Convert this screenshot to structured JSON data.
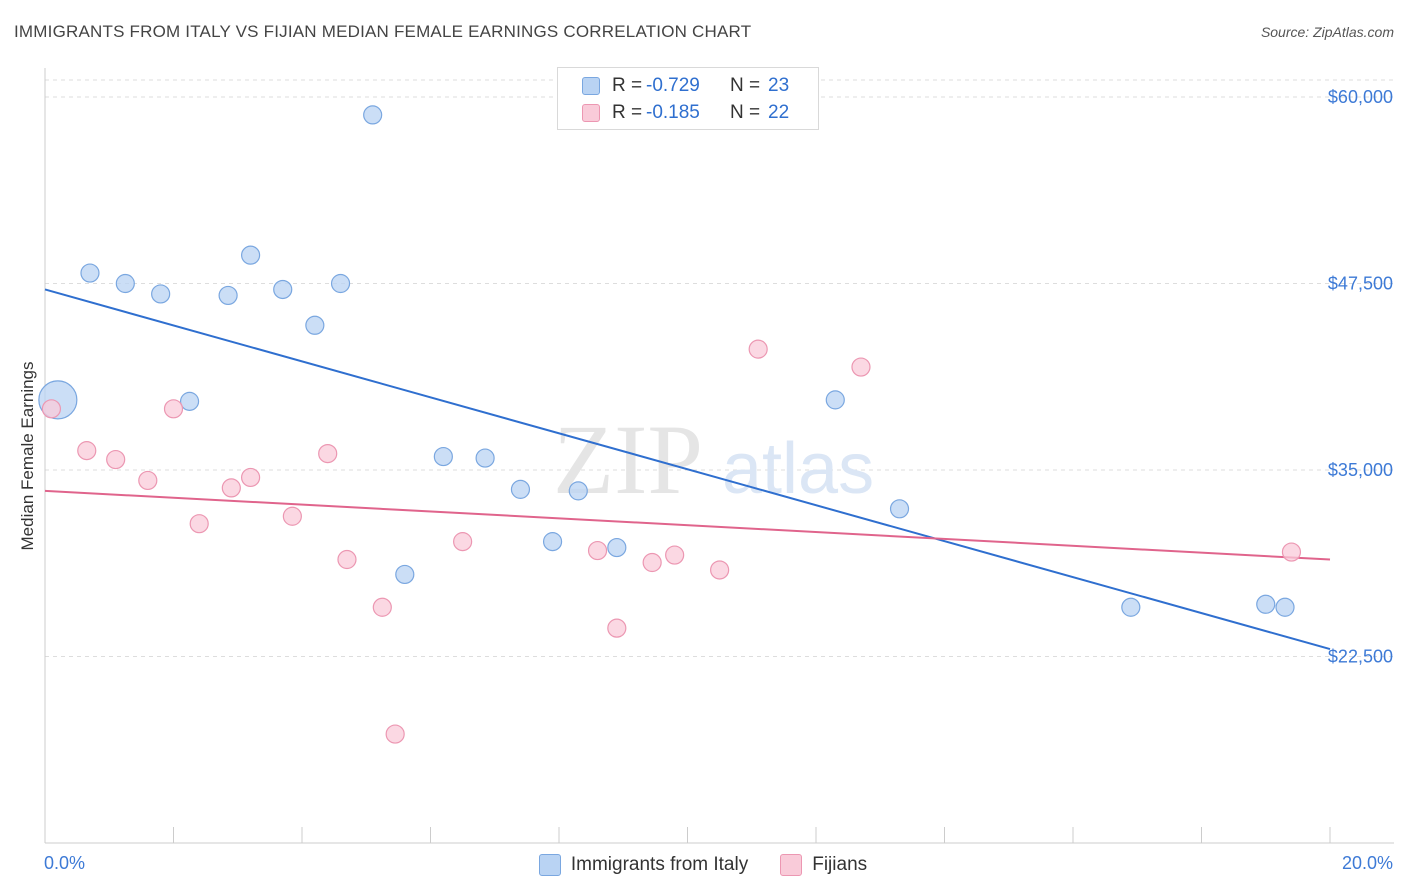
{
  "title": "IMMIGRANTS FROM ITALY VS FIJIAN MEDIAN FEMALE EARNINGS CORRELATION CHART",
  "source": "Source: ZipAtlas.com",
  "watermark": {
    "part1": "ZIP",
    "part2": "atlas"
  },
  "legend": {
    "rows": [
      {
        "r_label": "R =",
        "r_value": "-0.729",
        "n_label": "N =",
        "n_value": "23"
      },
      {
        "r_label": "R =",
        "r_value": "-0.185",
        "n_label": "N =",
        "n_value": "22"
      }
    ]
  },
  "colors": {
    "blue_fill": "#b9d3f3",
    "blue_stroke": "#7aa7e0",
    "blue_line": "#2f6fcf",
    "pink_fill": "#f9cbd9",
    "pink_stroke": "#ec97b2",
    "pink_line": "#e0648c",
    "tick_label": "#3d7ad6",
    "grid": "#dddddd"
  },
  "chart_data": {
    "type": "scatter",
    "title": "IMMIGRANTS FROM ITALY VS FIJIAN MEDIAN FEMALE EARNINGS CORRELATION CHART",
    "xlabel": "",
    "ylabel": "Median Female Earnings",
    "xlim": [
      0,
      20
    ],
    "ylim": [
      10000,
      61000
    ],
    "x_tick_labels": [
      "0.0%",
      "20.0%"
    ],
    "y_ticks": [
      22500,
      35000,
      47500,
      60000
    ],
    "y_tick_labels": [
      "$22,500",
      "$35,000",
      "$47,500",
      "$60,000"
    ],
    "grid": true,
    "legend_position": "top-center",
    "series": [
      {
        "name": "Immigrants from Italy",
        "r": -0.729,
        "n": 23,
        "trend": {
          "x": [
            0,
            20
          ],
          "y": [
            47100,
            23000
          ]
        },
        "points": [
          {
            "x": 0.2,
            "y": 39700,
            "size": "large"
          },
          {
            "x": 0.7,
            "y": 48200
          },
          {
            "x": 1.25,
            "y": 47500
          },
          {
            "x": 1.8,
            "y": 46800
          },
          {
            "x": 2.25,
            "y": 39600
          },
          {
            "x": 2.85,
            "y": 46700
          },
          {
            "x": 3.2,
            "y": 49400
          },
          {
            "x": 3.7,
            "y": 47100
          },
          {
            "x": 4.2,
            "y": 44700
          },
          {
            "x": 4.6,
            "y": 47500
          },
          {
            "x": 5.1,
            "y": 58800
          },
          {
            "x": 5.6,
            "y": 28000
          },
          {
            "x": 6.2,
            "y": 35900
          },
          {
            "x": 6.85,
            "y": 35800
          },
          {
            "x": 7.4,
            "y": 33700
          },
          {
            "x": 7.9,
            "y": 30200
          },
          {
            "x": 8.3,
            "y": 33600
          },
          {
            "x": 8.9,
            "y": 29800
          },
          {
            "x": 12.3,
            "y": 39700
          },
          {
            "x": 13.3,
            "y": 32400
          },
          {
            "x": 16.9,
            "y": 25800
          },
          {
            "x": 19.0,
            "y": 26000
          },
          {
            "x": 19.3,
            "y": 25800
          }
        ]
      },
      {
        "name": "Fijians",
        "r": -0.185,
        "n": 22,
        "trend": {
          "x": [
            0,
            20
          ],
          "y": [
            33600,
            29000
          ]
        },
        "points": [
          {
            "x": 0.1,
            "y": 39100
          },
          {
            "x": 0.65,
            "y": 36300
          },
          {
            "x": 1.1,
            "y": 35700
          },
          {
            "x": 1.6,
            "y": 34300
          },
          {
            "x": 2.0,
            "y": 39100
          },
          {
            "x": 2.4,
            "y": 31400
          },
          {
            "x": 2.9,
            "y": 33800
          },
          {
            "x": 3.2,
            "y": 34500
          },
          {
            "x": 3.85,
            "y": 31900
          },
          {
            "x": 4.4,
            "y": 36100
          },
          {
            "x": 4.7,
            "y": 29000
          },
          {
            "x": 5.25,
            "y": 25800
          },
          {
            "x": 5.45,
            "y": 17300
          },
          {
            "x": 6.5,
            "y": 30200
          },
          {
            "x": 8.6,
            "y": 29600
          },
          {
            "x": 8.9,
            "y": 24400
          },
          {
            "x": 9.45,
            "y": 28800
          },
          {
            "x": 9.8,
            "y": 29300
          },
          {
            "x": 10.5,
            "y": 28300
          },
          {
            "x": 11.1,
            "y": 43100
          },
          {
            "x": 12.7,
            "y": 41900
          },
          {
            "x": 19.4,
            "y": 29500
          }
        ]
      }
    ]
  }
}
